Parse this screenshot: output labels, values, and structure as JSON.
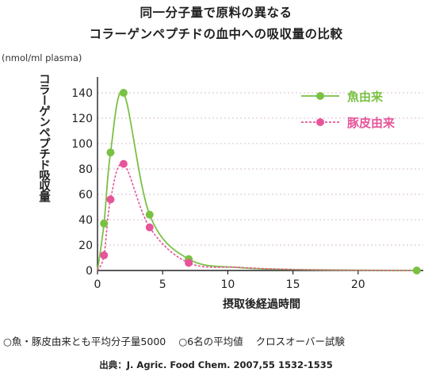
{
  "titles": {
    "line1": "同一分子量で原料の異なる",
    "line2": "コラーゲンペプチドの血中への吸収量の比較"
  },
  "notes": {
    "item1": "○魚・豚皮由来とも平均分子量5000",
    "item2": "○6名の平均値",
    "item3": "クロスオーバー試験"
  },
  "source": "出典：J. Agric. Food Chem. 2007,55 1532-1535",
  "chart_data": {
    "type": "line",
    "ylabel": "コラーゲンペプチド吸収量",
    "yunit": "(nmol/ml plasma)",
    "xlabel": "摂取後経過時間",
    "xlim": [
      0,
      25
    ],
    "ylim": [
      0,
      150
    ],
    "xticks": [
      0,
      5,
      10,
      15,
      20
    ],
    "yticks": [
      0,
      20,
      40,
      60,
      80,
      100,
      120,
      140
    ],
    "grid": "horizontal dotted",
    "legend": "top-right",
    "series": [
      {
        "name": "魚由来",
        "color": "#7ac143",
        "style": "solid",
        "points": [
          [
            0.5,
            37
          ],
          [
            1,
            93
          ],
          [
            2,
            140
          ],
          [
            4,
            44
          ],
          [
            7,
            9
          ],
          [
            24.5,
            0
          ]
        ]
      },
      {
        "name": "豚皮由来",
        "color": "#e6559a",
        "style": "dashed",
        "points": [
          [
            0.5,
            12
          ],
          [
            1,
            56
          ],
          [
            2,
            84
          ],
          [
            4,
            34
          ],
          [
            7,
            6
          ]
        ]
      }
    ]
  }
}
